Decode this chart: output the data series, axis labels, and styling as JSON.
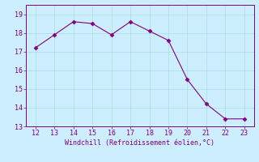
{
  "x": [
    12,
    13,
    14,
    15,
    16,
    17,
    18,
    19,
    20,
    21,
    22,
    23
  ],
  "y": [
    17.2,
    17.9,
    18.6,
    18.5,
    17.9,
    18.6,
    18.1,
    17.6,
    15.5,
    14.2,
    13.4,
    13.4
  ],
  "line_color": "#800080",
  "marker": "D",
  "marker_size": 2.5,
  "background_color": "#cceeff",
  "grid_color": "#aadddd",
  "xlabel": "Windchill (Refroidissement éolien,°C)",
  "xlabel_color": "#800080",
  "tick_color": "#800080",
  "xlim": [
    11.5,
    23.5
  ],
  "ylim": [
    13.0,
    19.5
  ],
  "xticks": [
    12,
    13,
    14,
    15,
    16,
    17,
    18,
    19,
    20,
    21,
    22,
    23
  ],
  "yticks": [
    13,
    14,
    15,
    16,
    17,
    18,
    19
  ],
  "spine_color": "#800080"
}
